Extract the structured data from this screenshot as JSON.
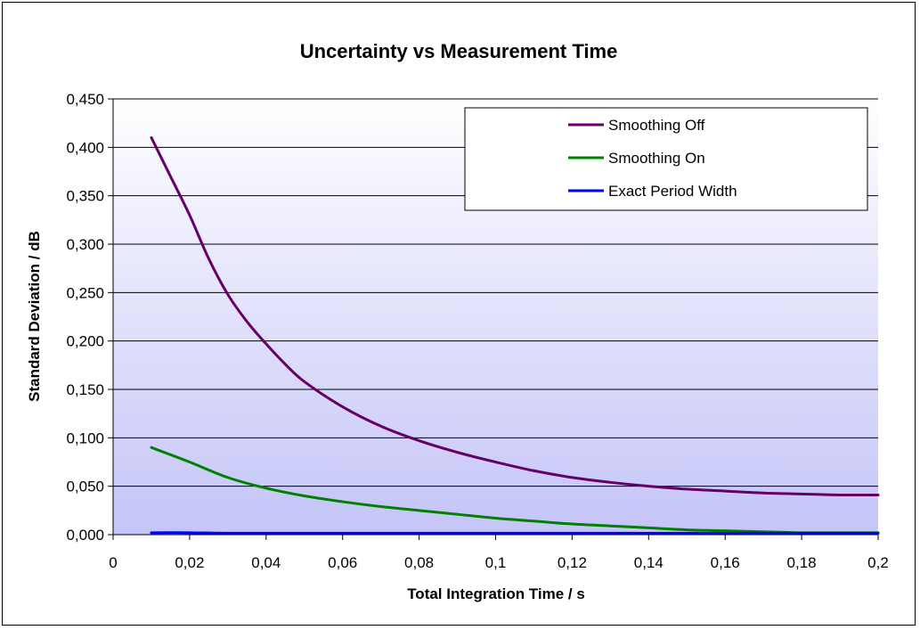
{
  "chart_data": {
    "type": "line",
    "title": "Uncertainty vs Measurement Time",
    "xlabel": "Total Integration Time / s",
    "ylabel": "Standard Deviation / dB",
    "xlim": [
      0,
      0.2
    ],
    "ylim": [
      0,
      0.45
    ],
    "x_ticks": [
      "0",
      "0,02",
      "0,04",
      "0,06",
      "0,08",
      "0,1",
      "0,12",
      "0,14",
      "0,16",
      "0,18",
      "0,2"
    ],
    "x_tick_values": [
      0,
      0.02,
      0.04,
      0.06,
      0.08,
      0.1,
      0.12,
      0.14,
      0.16,
      0.18,
      0.2
    ],
    "y_ticks": [
      "0,000",
      "0,050",
      "0,100",
      "0,150",
      "0,200",
      "0,250",
      "0,300",
      "0,350",
      "0,400",
      "0,450"
    ],
    "y_tick_values": [
      0,
      0.05,
      0.1,
      0.15,
      0.2,
      0.25,
      0.3,
      0.35,
      0.4,
      0.45
    ],
    "grid": "horizontal",
    "legend_position": "top-right",
    "series": [
      {
        "name": "Smoothing Off",
        "color": "#660066",
        "x": [
          0.01,
          0.015,
          0.02,
          0.025,
          0.03,
          0.035,
          0.04,
          0.045,
          0.05,
          0.06,
          0.07,
          0.08,
          0.09,
          0.1,
          0.11,
          0.12,
          0.13,
          0.14,
          0.15,
          0.16,
          0.17,
          0.18,
          0.19,
          0.2
        ],
        "values": [
          0.41,
          0.37,
          0.33,
          0.285,
          0.248,
          0.22,
          0.197,
          0.176,
          0.158,
          0.132,
          0.112,
          0.097,
          0.085,
          0.075,
          0.066,
          0.059,
          0.054,
          0.05,
          0.047,
          0.045,
          0.043,
          0.042,
          0.041,
          0.041
        ]
      },
      {
        "name": "Smoothing On",
        "color": "#008000",
        "x": [
          0.01,
          0.02,
          0.03,
          0.04,
          0.05,
          0.06,
          0.07,
          0.08,
          0.09,
          0.1,
          0.11,
          0.12,
          0.13,
          0.14,
          0.15,
          0.16,
          0.17,
          0.18,
          0.19,
          0.2
        ],
        "values": [
          0.09,
          0.075,
          0.059,
          0.048,
          0.04,
          0.034,
          0.029,
          0.025,
          0.021,
          0.017,
          0.014,
          0.011,
          0.009,
          0.007,
          0.005,
          0.004,
          0.003,
          0.002,
          0.002,
          0.002
        ]
      },
      {
        "name": "Exact Period Width",
        "color": "#0000ff",
        "x": [
          0.01,
          0.02,
          0.03,
          0.05,
          0.1,
          0.15,
          0.2
        ],
        "values": [
          0.002,
          0.002,
          0.0015,
          0.0015,
          0.0015,
          0.0015,
          0.0015
        ]
      }
    ]
  }
}
